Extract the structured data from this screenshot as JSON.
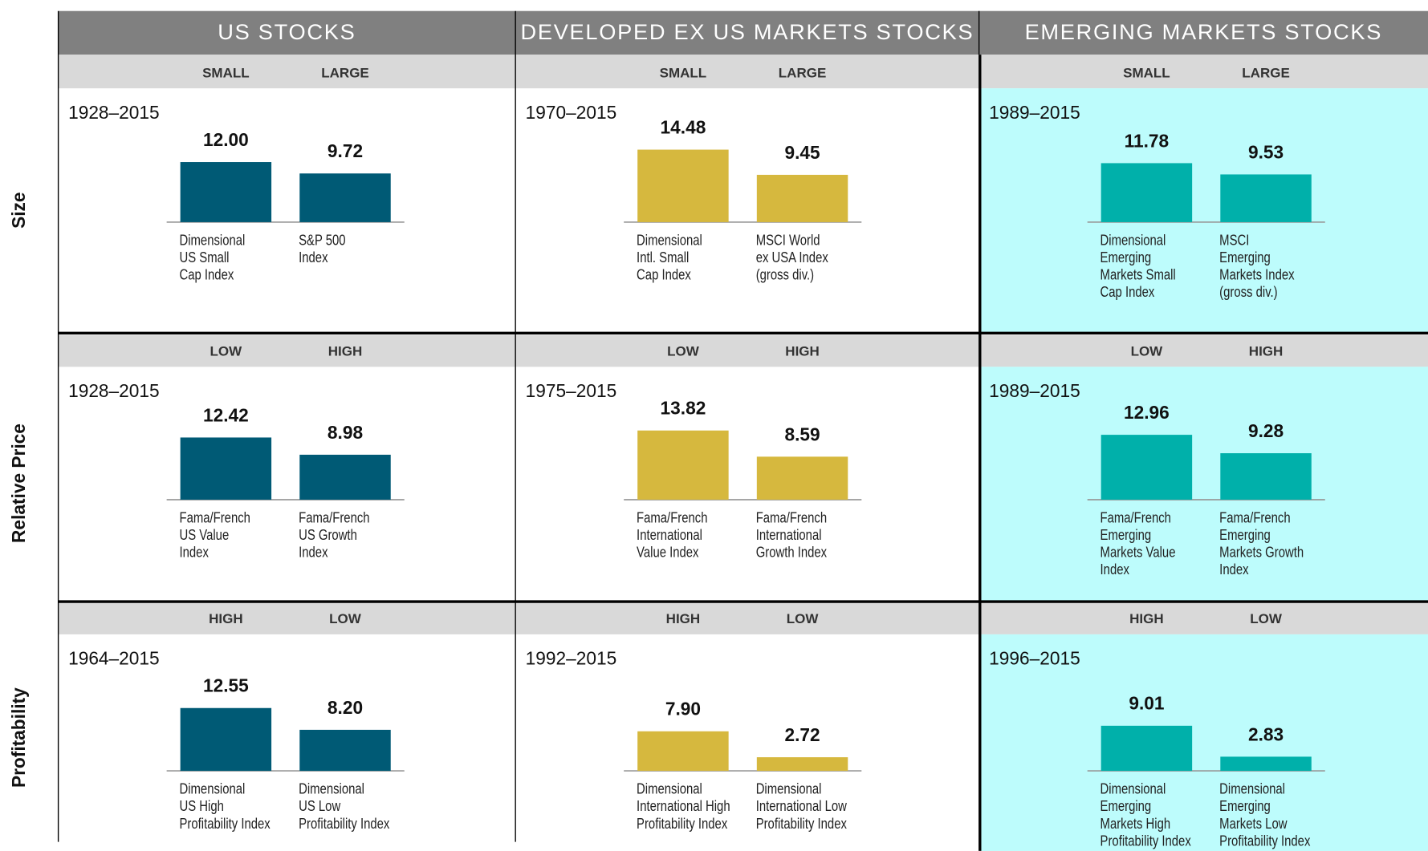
{
  "columns": [
    "US STOCKS",
    "DEVELOPED EX US MARKETS STOCKS",
    "EMERGING MARKETS STOCKS"
  ],
  "rows": [
    "Size",
    "Relative Price",
    "Profitability"
  ],
  "chart_data": [
    {
      "type": "bar",
      "subtitle": "1928–2015",
      "categories": [
        "SMALL",
        "LARGE"
      ],
      "values": [
        12,
        9.72
      ],
      "value_labels": [
        "12.00",
        "9.72"
      ],
      "color": "#005a75",
      "bar_labels": [
        [
          "Dimensional",
          "US Small",
          "Cap Index"
        ],
        [
          "S&P 500",
          "Index"
        ]
      ]
    },
    {
      "type": "bar",
      "subtitle": "1970–2015",
      "categories": [
        "SMALL",
        "LARGE"
      ],
      "values": [
        14.48,
        9.45
      ],
      "value_labels": [
        "14.48",
        "9.45"
      ],
      "color": "#d6b83e",
      "bar_labels": [
        [
          "Dimensional",
          "Intl. Small",
          "Cap Index"
        ],
        [
          "MSCI World",
          "ex USA Index",
          "(gross div.)"
        ]
      ]
    },
    {
      "type": "bar",
      "subtitle": "1989–2015",
      "categories": [
        "SMALL",
        "LARGE"
      ],
      "values": [
        11.78,
        9.53
      ],
      "value_labels": [
        "11.78",
        "9.53"
      ],
      "color": "#00b0aa",
      "bar_labels": [
        [
          "Dimensional",
          "Emerging",
          "Markets Small",
          "Cap Index"
        ],
        [
          "MSCI",
          "Emerging",
          "Markets Index",
          "(gross div.)"
        ]
      ]
    },
    {
      "type": "bar",
      "subtitle": "1928–2015",
      "categories": [
        "LOW",
        "HIGH"
      ],
      "values": [
        12.42,
        8.98
      ],
      "value_labels": [
        "12.42",
        "8.98"
      ],
      "color": "#005a75",
      "bar_labels": [
        [
          "Fama/French",
          "US Value",
          "Index"
        ],
        [
          "Fama/French",
          "US Growth",
          "Index"
        ]
      ]
    },
    {
      "type": "bar",
      "subtitle": "1975–2015",
      "categories": [
        "LOW",
        "HIGH"
      ],
      "values": [
        13.82,
        8.59
      ],
      "value_labels": [
        "13.82",
        "8.59"
      ],
      "color": "#d6b83e",
      "bar_labels": [
        [
          "Fama/French",
          "International",
          "Value Index"
        ],
        [
          "Fama/French",
          "International",
          "Growth Index"
        ]
      ]
    },
    {
      "type": "bar",
      "subtitle": "1989–2015",
      "categories": [
        "LOW",
        "HIGH"
      ],
      "values": [
        12.96,
        9.28
      ],
      "value_labels": [
        "12.96",
        "9.28"
      ],
      "color": "#00b0aa",
      "bar_labels": [
        [
          "Fama/French",
          "Emerging",
          "Markets Value",
          "Index"
        ],
        [
          "Fama/French",
          "Emerging",
          "Markets Growth",
          "Index"
        ]
      ]
    },
    {
      "type": "bar",
      "subtitle": "1964–2015",
      "categories": [
        "HIGH",
        "LOW"
      ],
      "values": [
        12.55,
        8.2
      ],
      "value_labels": [
        "12.55",
        "8.20"
      ],
      "color": "#005a75",
      "bar_labels": [
        [
          "Dimensional",
          "US High",
          "Profitability Index"
        ],
        [
          "Dimensional",
          "US Low",
          "Profitability Index"
        ]
      ]
    },
    {
      "type": "bar",
      "subtitle": "1992–2015",
      "categories": [
        "HIGH",
        "LOW"
      ],
      "values": [
        7.9,
        2.72
      ],
      "value_labels": [
        "7.90",
        "2.72"
      ],
      "color": "#d6b83e",
      "bar_labels": [
        [
          "Dimensional",
          "International High",
          "Profitability Index"
        ],
        [
          "Dimensional",
          "International Low",
          "Profitability Index"
        ]
      ]
    },
    {
      "type": "bar",
      "subtitle": "1996–2015",
      "categories": [
        "HIGH",
        "LOW"
      ],
      "values": [
        9.01,
        2.83
      ],
      "value_labels": [
        "9.01",
        "2.83"
      ],
      "color": "#00b0aa",
      "bar_labels": [
        [
          "Dimensional",
          "Emerging",
          "Markets High",
          "Profitability Index"
        ],
        [
          "Dimensional",
          "Emerging",
          "Markets Low",
          "Profitability Index"
        ]
      ]
    }
  ]
}
